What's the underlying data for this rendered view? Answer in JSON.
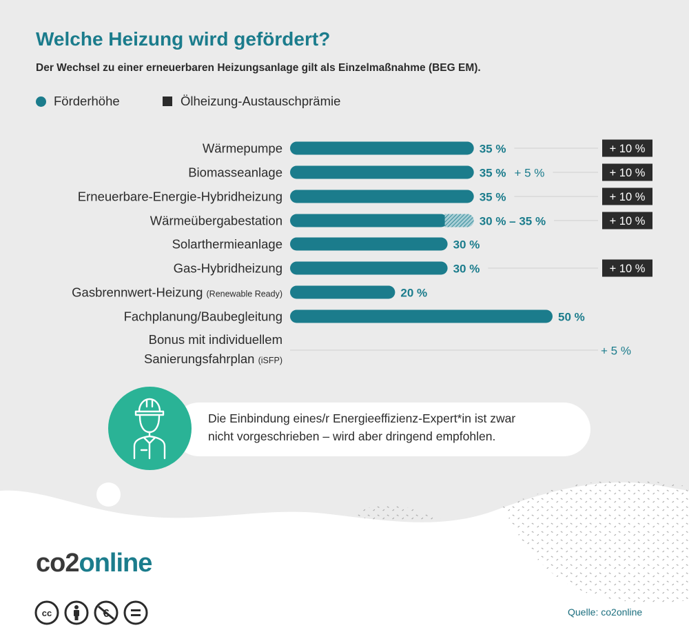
{
  "title": "Welche Heizung wird gefördert?",
  "subtitle": "Der Wechsel zu einer erneuerbaren Heizungsanlage gilt als Einzelmaßnahme (BEG EM).",
  "legend": [
    {
      "label": "Förderhöhe",
      "color": "#1b7c8c",
      "shape": "circle"
    },
    {
      "label": "Ölheizung-Austauschprämie",
      "color": "#2b2b2b",
      "shape": "square"
    }
  ],
  "chart_data": {
    "type": "bar",
    "orientation": "horizontal",
    "unit": "%",
    "categories": [
      {
        "label": "Wärmepumpe",
        "suffix": ""
      },
      {
        "label": "Biomasseanlage",
        "suffix": ""
      },
      {
        "label": "Erneuerbare-Energie-Hybridheizung",
        "suffix": ""
      },
      {
        "label": "Wärmeübergabestation",
        "suffix": ""
      },
      {
        "label": "Solarthermieanlage",
        "suffix": ""
      },
      {
        "label": "Gas-Hybridheizung",
        "suffix": ""
      },
      {
        "label": "Gasbrennwert-Heizung",
        "suffix": "(Renewable Ready)"
      },
      {
        "label": "Fachplanung/Baubegleitung",
        "suffix": ""
      },
      {
        "label": "Bonus mit individuellem",
        "label2": "Sanierungsfahrplan",
        "suffix": "(iSFP)"
      }
    ],
    "series": [
      {
        "name": "Förderhöhe",
        "color": "#1b7c8c",
        "values": [
          35,
          35,
          35,
          30,
          30,
          30,
          20,
          50,
          null
        ],
        "range_max": [
          null,
          null,
          null,
          35,
          null,
          null,
          null,
          null,
          null
        ],
        "value_labels": [
          "35 %",
          "35 %",
          "35 %",
          "30 % – 35 %",
          "30 %",
          "30 %",
          "20 %",
          "50 %",
          ""
        ],
        "extra_labels": [
          "",
          "+ 5 %",
          "",
          "",
          "",
          "",
          "",
          "",
          ""
        ]
      },
      {
        "name": "Ölheizung-Austauschprämie",
        "color": "#2b2b2b",
        "values": [
          10,
          10,
          10,
          10,
          null,
          10,
          null,
          null,
          null
        ],
        "badge_labels": [
          "+ 10 %",
          "+ 10 %",
          "+ 10 %",
          "+ 10 %",
          "",
          "+ 10 %",
          "",
          "",
          ""
        ]
      }
    ],
    "bonus": {
      "label": "+ 5 %",
      "color": "#1b7c8c"
    },
    "xlim": [
      0,
      50
    ],
    "grid": false
  },
  "callout": {
    "text_line1": "Die Einbindung eines/r Energieeffizienz-Expert*in ist zwar",
    "text_line2": "nicht vorgeschrieben – wird aber dringend empfohlen.",
    "icon": "construction-worker-icon",
    "icon_bg": "#2ab396"
  },
  "logo": {
    "part1": "co2",
    "part2": "online"
  },
  "license_icons": [
    "cc-icon",
    "by-attribution-icon",
    "noncommercial-icon",
    "no-derivatives-icon"
  ],
  "source": "Quelle: co2online",
  "colors": {
    "teal": "#1b7c8c",
    "dark": "#2b2b2b",
    "background": "#ebebeb",
    "green": "#2ab396"
  }
}
